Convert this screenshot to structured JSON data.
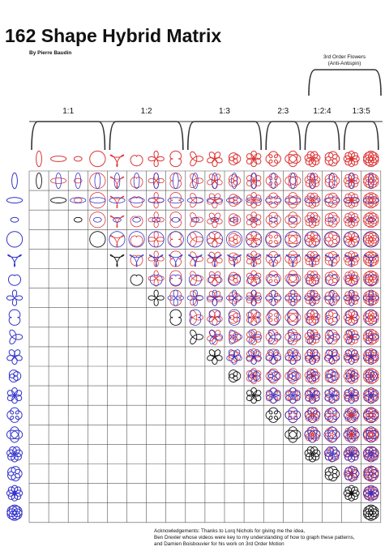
{
  "header": {
    "title": "162 Shape Hybrid Matrix",
    "byline": "By Pierre Baudin"
  },
  "groups": [
    {
      "label": "1:1"
    },
    {
      "label": "1:2"
    },
    {
      "label": "1:3"
    },
    {
      "label": "2:3"
    },
    {
      "label": "1:2:4"
    },
    {
      "label": "1:3:5"
    }
  ],
  "bracket_note": {
    "lines": [
      "3rd Order Flowers",
      "(Anti-Antispin)"
    ]
  },
  "acknowledgements": [
    "Acknowledgements: Thanks to Lorq Nichols for giving me the idea,",
    "Ben Drexler whose videos were key to my understanding of how to graph these patterns,",
    "and Damien Boisbouvier for his work on 3rd Order Motion"
  ]
}
